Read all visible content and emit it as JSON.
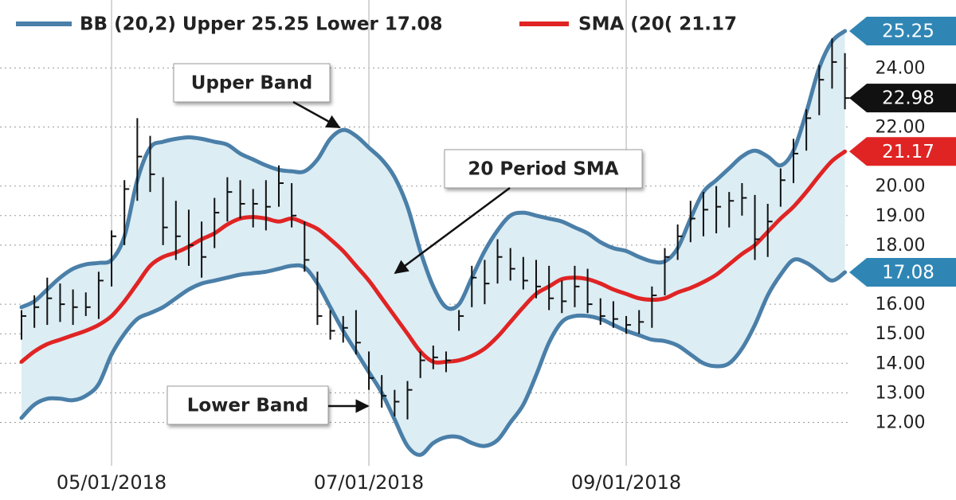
{
  "chart_data": {
    "type": "bollinger",
    "categories": [
      null,
      null,
      null,
      null,
      null,
      null,
      null,
      "05/01/2018",
      null,
      null,
      null,
      null,
      null,
      null,
      null,
      null,
      null,
      null,
      null,
      null,
      null,
      null,
      null,
      null,
      null,
      null,
      null,
      "07/01/2018",
      null,
      null,
      null,
      null,
      null,
      null,
      null,
      null,
      null,
      null,
      null,
      null,
      null,
      null,
      null,
      null,
      null,
      null,
      null,
      "09/01/2018",
      null,
      null,
      null,
      null,
      null,
      null,
      null,
      null,
      null,
      null,
      null,
      null,
      null,
      null,
      null,
      null,
      null
    ],
    "series": [
      {
        "name": "BB (20,2) Upper 25.25 Lower 17.08",
        "color": "#4a7fa8",
        "flag_color": "#2f86b5",
        "upper": [
          15.9,
          16.1,
          16.5,
          16.9,
          17.2,
          17.35,
          17.4,
          17.5,
          18.3,
          20.2,
          21.3,
          21.5,
          21.6,
          21.65,
          21.6,
          21.5,
          21.4,
          21.1,
          20.9,
          20.7,
          20.55,
          20.5,
          20.5,
          20.9,
          21.6,
          21.9,
          21.7,
          21.3,
          20.9,
          20.3,
          19.3,
          17.8,
          16.6,
          15.9,
          16.0,
          16.9,
          17.8,
          18.5,
          19.0,
          19.1,
          19.0,
          18.9,
          18.8,
          18.6,
          18.4,
          18.1,
          17.9,
          17.8,
          17.6,
          17.45,
          17.45,
          17.9,
          18.9,
          19.8,
          20.2,
          20.6,
          21.0,
          21.2,
          21.0,
          20.7,
          21.2,
          22.5,
          24.0,
          24.9,
          25.25
        ],
        "lower": [
          12.15,
          12.6,
          12.8,
          12.8,
          12.75,
          12.9,
          13.3,
          14.3,
          15.0,
          15.5,
          15.7,
          15.9,
          16.2,
          16.5,
          16.7,
          16.8,
          16.9,
          17.0,
          17.05,
          17.1,
          17.2,
          17.3,
          17.25,
          16.7,
          15.9,
          15.1,
          14.4,
          13.7,
          13.0,
          12.1,
          11.2,
          10.9,
          11.3,
          11.5,
          11.5,
          11.3,
          11.2,
          11.4,
          12.0,
          12.6,
          13.6,
          14.7,
          15.4,
          15.6,
          15.6,
          15.5,
          15.3,
          15.1,
          14.95,
          14.8,
          14.75,
          14.6,
          14.3,
          14.0,
          13.9,
          14.0,
          14.5,
          15.3,
          16.3,
          17.0,
          17.5,
          17.4,
          17.1,
          16.8,
          17.08
        ]
      },
      {
        "name": "SMA (20( 21.17",
        "color": "#e02424",
        "values": [
          14.05,
          14.4,
          14.65,
          14.8,
          14.95,
          15.1,
          15.3,
          15.6,
          16.1,
          16.7,
          17.3,
          17.6,
          17.75,
          17.95,
          18.2,
          18.4,
          18.7,
          18.9,
          18.95,
          18.9,
          18.8,
          18.9,
          18.75,
          18.55,
          18.2,
          17.8,
          17.3,
          16.8,
          16.2,
          15.6,
          15.0,
          14.4,
          14.05,
          14.05,
          14.1,
          14.25,
          14.5,
          14.9,
          15.4,
          15.9,
          16.35,
          16.6,
          16.85,
          16.9,
          16.85,
          16.7,
          16.5,
          16.35,
          16.2,
          16.15,
          16.2,
          16.4,
          16.55,
          16.75,
          17.0,
          17.35,
          17.7,
          18.0,
          18.45,
          18.9,
          19.3,
          19.8,
          20.35,
          20.85,
          21.17
        ]
      },
      {
        "color": "#111111",
        "high": [
          15.8,
          16.3,
          16.9,
          16.7,
          16.5,
          16.4,
          17.1,
          18.5,
          20.2,
          22.3,
          21.7,
          20.3,
          19.5,
          19.2,
          18.8,
          19.6,
          20.3,
          20.2,
          19.9,
          20.2,
          20.7,
          20.1,
          18.8,
          17.1,
          15.8,
          15.6,
          15.8,
          14.4,
          13.6,
          13.1,
          13.4,
          14.4,
          14.6,
          14.4,
          15.8,
          17.3,
          17.5,
          18.2,
          17.9,
          17.6,
          17.5,
          17.3,
          16.8,
          17.3,
          17.2,
          16.2,
          16.1,
          15.6,
          15.8,
          16.6,
          17.9,
          18.7,
          19.5,
          19.8,
          20.0,
          19.8,
          20.1,
          19.7,
          19.4,
          20.6,
          21.6,
          22.6,
          24.1,
          25.0,
          24.5
        ],
        "low": [
          14.8,
          15.2,
          15.3,
          15.4,
          15.3,
          15.6,
          15.5,
          16.6,
          18.0,
          19.5,
          19.8,
          18.0,
          17.5,
          17.3,
          16.9,
          17.9,
          18.8,
          18.9,
          18.6,
          18.5,
          19.3,
          18.6,
          17.1,
          15.3,
          14.8,
          14.7,
          14.3,
          13.1,
          12.5,
          12.2,
          12.1,
          13.5,
          13.8,
          13.7,
          15.1,
          15.9,
          16.0,
          16.7,
          16.8,
          16.5,
          16.2,
          15.8,
          15.7,
          15.9,
          15.7,
          15.3,
          15.2,
          15.0,
          15.0,
          15.2,
          16.3,
          17.5,
          18.1,
          18.3,
          18.4,
          18.6,
          19.0,
          17.5,
          17.6,
          19.3,
          20.1,
          21.2,
          22.4,
          23.3,
          22.6
        ],
        "close": [
          15.6,
          15.9,
          16.2,
          16.0,
          15.9,
          15.9,
          16.8,
          18.3,
          19.9,
          21.0,
          20.4,
          18.6,
          18.3,
          18.0,
          17.6,
          19.1,
          19.8,
          19.4,
          19.4,
          19.3,
          20.1,
          19.0,
          17.5,
          15.6,
          15.1,
          15.2,
          14.7,
          13.5,
          12.9,
          12.7,
          13.1,
          14.1,
          14.2,
          14.1,
          15.6,
          16.9,
          16.7,
          17.6,
          17.2,
          16.8,
          16.6,
          16.2,
          16.1,
          16.6,
          16.0,
          15.6,
          15.5,
          15.3,
          15.4,
          16.3,
          17.6,
          18.3,
          18.9,
          19.2,
          19.3,
          19.5,
          19.6,
          18.2,
          18.8,
          20.2,
          21.1,
          22.3,
          23.6,
          24.2,
          22.98
        ]
      }
    ],
    "ylim": [
      10.8,
      26.3
    ],
    "yticks": [
      {
        "value": 12,
        "label": "12.00"
      },
      {
        "value": 13,
        "label": "13.00"
      },
      {
        "value": 14,
        "label": "14.00"
      },
      {
        "value": 15,
        "label": "15.00"
      },
      {
        "value": 16,
        "label": "16.00"
      },
      {
        "value": 18,
        "label": "18.00"
      },
      {
        "value": 19,
        "label": "19.00"
      },
      {
        "value": 20,
        "label": "20.00"
      },
      {
        "value": 22,
        "label": "22.00"
      },
      {
        "value": 24,
        "label": "24.00"
      }
    ],
    "grid": true,
    "annotations": [
      "Upper Band",
      "20 Period SMA",
      "Lower Band"
    ]
  }
}
